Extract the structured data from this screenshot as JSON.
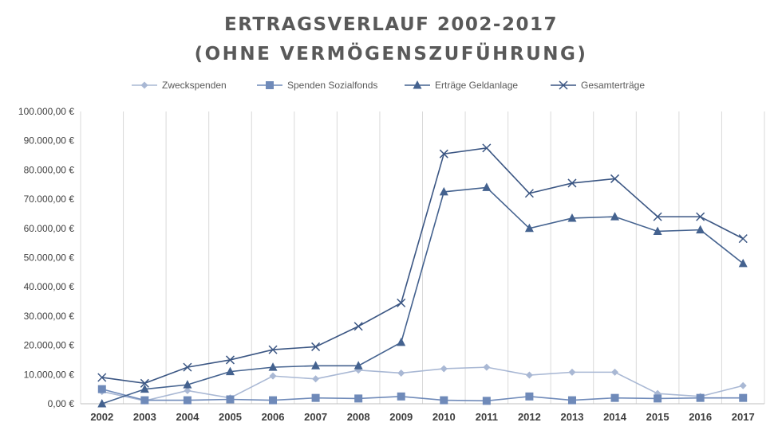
{
  "title_line1": "ERTRAGSVERLAUF  2002-2017",
  "title_line2": "(OHNE VERMÖGENSZUFÜHRUNG)",
  "chart_data": {
    "type": "line",
    "title": "ERTRAGSVERLAUF 2002-2017 (OHNE VERMÖGENSZUFÜHRUNG)",
    "x": [
      "2002",
      "2003",
      "2004",
      "2005",
      "2006",
      "2007",
      "2008",
      "2009",
      "2010",
      "2011",
      "2012",
      "2013",
      "2014",
      "2015",
      "2016",
      "2017"
    ],
    "ylim": [
      0,
      100000
    ],
    "y_ticks": [
      "0,00 €",
      "10.000,00 €",
      "20.000,00 €",
      "30.000,00 €",
      "40.000,00 €",
      "50.000,00 €",
      "60.000,00 €",
      "70.000,00 €",
      "80.000,00 €",
      "90.000,00 €",
      "100.000,00 €"
    ],
    "grid": "vertical",
    "legend_position": "top",
    "series": [
      {
        "name": "Zweckspenden",
        "marker": "diamond",
        "color": "#a9b8d4",
        "values": [
          4200,
          1000,
          4500,
          2000,
          9500,
          8500,
          11500,
          10500,
          12000,
          12500,
          9800,
          10800,
          10800,
          3500,
          2500,
          6200
        ]
      },
      {
        "name": "Spenden Sozialfonds",
        "marker": "square",
        "color": "#6f8ab9",
        "values": [
          5000,
          1200,
          1200,
          1500,
          1200,
          2000,
          1800,
          2500,
          1200,
          1000,
          2500,
          1200,
          2000,
          1800,
          2000,
          2000
        ]
      },
      {
        "name": "Erträge Geldanlage",
        "marker": "triangle",
        "color": "#44628f",
        "values": [
          0,
          5000,
          6500,
          11000,
          12500,
          13000,
          13000,
          21000,
          72500,
          74000,
          60000,
          63500,
          64000,
          59000,
          59500,
          48000
        ]
      },
      {
        "name": "Gesamterträge",
        "marker": "x",
        "color": "#3b5683",
        "values": [
          9000,
          7000,
          12500,
          15000,
          18500,
          19500,
          26500,
          34500,
          85500,
          87500,
          72000,
          75500,
          77000,
          64000,
          64000,
          56500
        ]
      }
    ]
  }
}
